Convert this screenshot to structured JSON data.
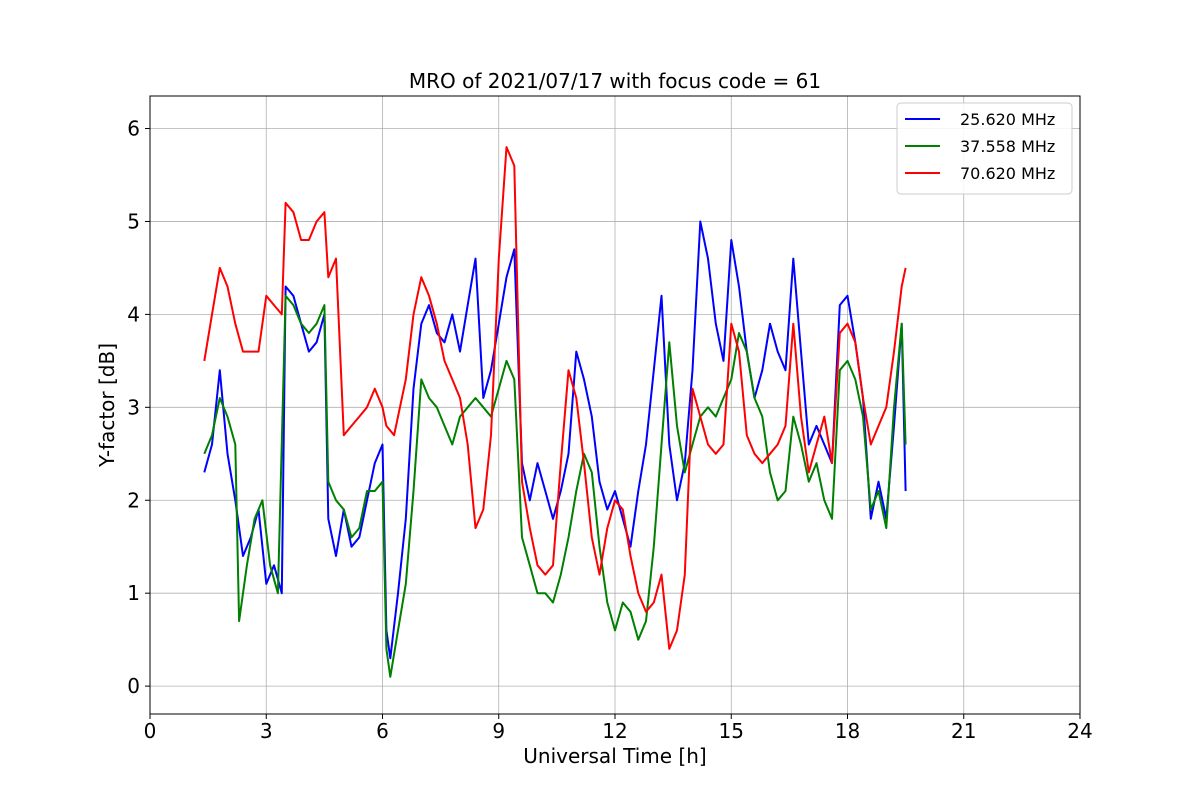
{
  "chart_data": {
    "type": "line",
    "title": "MRO of 2021/07/17 with focus code = 61",
    "xlabel": "Universal Time [h]",
    "ylabel": "Y-factor [dB]",
    "xlim": [
      0,
      24
    ],
    "ylim": [
      -0.3,
      6.35
    ],
    "xticks": [
      0,
      3,
      6,
      9,
      12,
      15,
      18,
      21,
      24
    ],
    "yticks": [
      0,
      1,
      2,
      3,
      4,
      5,
      6
    ],
    "grid": true,
    "legend_position": "top-right",
    "series": [
      {
        "name": "25.620 MHz",
        "color": "#0000ff",
        "points": [
          [
            1.4,
            2.3
          ],
          [
            1.6,
            2.6
          ],
          [
            1.8,
            3.4
          ],
          [
            2.0,
            2.5
          ],
          [
            2.2,
            2.0
          ],
          [
            2.4,
            1.4
          ],
          [
            2.6,
            1.6
          ],
          [
            2.8,
            1.9
          ],
          [
            3.0,
            1.1
          ],
          [
            3.2,
            1.3
          ],
          [
            3.4,
            1.0
          ],
          [
            3.5,
            4.3
          ],
          [
            3.7,
            4.2
          ],
          [
            3.9,
            3.9
          ],
          [
            4.1,
            3.6
          ],
          [
            4.3,
            3.7
          ],
          [
            4.5,
            4.0
          ],
          [
            4.6,
            1.8
          ],
          [
            4.8,
            1.4
          ],
          [
            5.0,
            1.9
          ],
          [
            5.2,
            1.5
          ],
          [
            5.4,
            1.6
          ],
          [
            5.6,
            2.0
          ],
          [
            5.8,
            2.4
          ],
          [
            6.0,
            2.6
          ],
          [
            6.1,
            0.6
          ],
          [
            6.2,
            0.3
          ],
          [
            6.4,
            1.0
          ],
          [
            6.6,
            1.8
          ],
          [
            6.8,
            3.2
          ],
          [
            7.0,
            3.9
          ],
          [
            7.2,
            4.1
          ],
          [
            7.4,
            3.8
          ],
          [
            7.6,
            3.7
          ],
          [
            7.8,
            4.0
          ],
          [
            8.0,
            3.6
          ],
          [
            8.2,
            4.1
          ],
          [
            8.4,
            4.6
          ],
          [
            8.6,
            3.1
          ],
          [
            8.8,
            3.4
          ],
          [
            9.0,
            3.9
          ],
          [
            9.2,
            4.4
          ],
          [
            9.4,
            4.7
          ],
          [
            9.6,
            2.4
          ],
          [
            9.8,
            2.0
          ],
          [
            10.0,
            2.4
          ],
          [
            10.2,
            2.1
          ],
          [
            10.4,
            1.8
          ],
          [
            10.6,
            2.1
          ],
          [
            10.8,
            2.5
          ],
          [
            11.0,
            3.6
          ],
          [
            11.2,
            3.3
          ],
          [
            11.4,
            2.9
          ],
          [
            11.6,
            2.2
          ],
          [
            11.8,
            1.9
          ],
          [
            12.0,
            2.1
          ],
          [
            12.2,
            1.8
          ],
          [
            12.4,
            1.5
          ],
          [
            12.6,
            2.1
          ],
          [
            12.8,
            2.6
          ],
          [
            13.0,
            3.4
          ],
          [
            13.2,
            4.2
          ],
          [
            13.4,
            2.6
          ],
          [
            13.6,
            2.0
          ],
          [
            13.8,
            2.4
          ],
          [
            14.0,
            3.4
          ],
          [
            14.2,
            5.0
          ],
          [
            14.4,
            4.6
          ],
          [
            14.6,
            3.9
          ],
          [
            14.8,
            3.5
          ],
          [
            15.0,
            4.8
          ],
          [
            15.2,
            4.3
          ],
          [
            15.4,
            3.6
          ],
          [
            15.6,
            3.1
          ],
          [
            15.8,
            3.4
          ],
          [
            16.0,
            3.9
          ],
          [
            16.2,
            3.6
          ],
          [
            16.4,
            3.4
          ],
          [
            16.6,
            4.6
          ],
          [
            16.8,
            3.6
          ],
          [
            17.0,
            2.6
          ],
          [
            17.2,
            2.8
          ],
          [
            17.4,
            2.6
          ],
          [
            17.6,
            2.4
          ],
          [
            17.8,
            4.1
          ],
          [
            18.0,
            4.2
          ],
          [
            18.2,
            3.7
          ],
          [
            18.4,
            3.1
          ],
          [
            18.6,
            1.8
          ],
          [
            18.8,
            2.2
          ],
          [
            19.0,
            1.8
          ],
          [
            19.2,
            2.8
          ],
          [
            19.4,
            3.9
          ],
          [
            19.5,
            2.1
          ]
        ]
      },
      {
        "name": "37.558 MHz",
        "color": "#008000",
        "points": [
          [
            1.4,
            2.5
          ],
          [
            1.6,
            2.7
          ],
          [
            1.8,
            3.1
          ],
          [
            2.0,
            2.9
          ],
          [
            2.2,
            2.6
          ],
          [
            2.3,
            0.7
          ],
          [
            2.5,
            1.3
          ],
          [
            2.7,
            1.8
          ],
          [
            2.9,
            2.0
          ],
          [
            3.1,
            1.3
          ],
          [
            3.3,
            1.0
          ],
          [
            3.5,
            4.2
          ],
          [
            3.7,
            4.1
          ],
          [
            3.9,
            3.9
          ],
          [
            4.1,
            3.8
          ],
          [
            4.3,
            3.9
          ],
          [
            4.5,
            4.1
          ],
          [
            4.6,
            2.2
          ],
          [
            4.8,
            2.0
          ],
          [
            5.0,
            1.9
          ],
          [
            5.2,
            1.6
          ],
          [
            5.4,
            1.7
          ],
          [
            5.6,
            2.1
          ],
          [
            5.8,
            2.1
          ],
          [
            6.0,
            2.2
          ],
          [
            6.1,
            0.4
          ],
          [
            6.2,
            0.1
          ],
          [
            6.4,
            0.6
          ],
          [
            6.6,
            1.1
          ],
          [
            6.8,
            2.1
          ],
          [
            7.0,
            3.3
          ],
          [
            7.2,
            3.1
          ],
          [
            7.4,
            3.0
          ],
          [
            7.6,
            2.8
          ],
          [
            7.8,
            2.6
          ],
          [
            8.0,
            2.9
          ],
          [
            8.2,
            3.0
          ],
          [
            8.4,
            3.1
          ],
          [
            8.6,
            3.0
          ],
          [
            8.8,
            2.9
          ],
          [
            9.0,
            3.2
          ],
          [
            9.2,
            3.5
          ],
          [
            9.4,
            3.3
          ],
          [
            9.6,
            1.6
          ],
          [
            9.8,
            1.3
          ],
          [
            10.0,
            1.0
          ],
          [
            10.2,
            1.0
          ],
          [
            10.4,
            0.9
          ],
          [
            10.6,
            1.2
          ],
          [
            10.8,
            1.6
          ],
          [
            11.0,
            2.1
          ],
          [
            11.2,
            2.5
          ],
          [
            11.4,
            2.3
          ],
          [
            11.6,
            1.5
          ],
          [
            11.8,
            0.9
          ],
          [
            12.0,
            0.6
          ],
          [
            12.2,
            0.9
          ],
          [
            12.4,
            0.8
          ],
          [
            12.6,
            0.5
          ],
          [
            12.8,
            0.7
          ],
          [
            13.0,
            1.5
          ],
          [
            13.2,
            2.6
          ],
          [
            13.4,
            3.7
          ],
          [
            13.6,
            2.8
          ],
          [
            13.8,
            2.3
          ],
          [
            14.0,
            2.6
          ],
          [
            14.2,
            2.9
          ],
          [
            14.4,
            3.0
          ],
          [
            14.6,
            2.9
          ],
          [
            14.8,
            3.1
          ],
          [
            15.0,
            3.3
          ],
          [
            15.2,
            3.8
          ],
          [
            15.4,
            3.6
          ],
          [
            15.6,
            3.1
          ],
          [
            15.8,
            2.9
          ],
          [
            16.0,
            2.3
          ],
          [
            16.2,
            2.0
          ],
          [
            16.4,
            2.1
          ],
          [
            16.6,
            2.9
          ],
          [
            16.8,
            2.6
          ],
          [
            17.0,
            2.2
          ],
          [
            17.2,
            2.4
          ],
          [
            17.4,
            2.0
          ],
          [
            17.6,
            1.8
          ],
          [
            17.8,
            3.4
          ],
          [
            18.0,
            3.5
          ],
          [
            18.2,
            3.3
          ],
          [
            18.4,
            2.9
          ],
          [
            18.6,
            1.9
          ],
          [
            18.8,
            2.1
          ],
          [
            19.0,
            1.7
          ],
          [
            19.2,
            3.0
          ],
          [
            19.4,
            3.9
          ],
          [
            19.5,
            2.6
          ]
        ]
      },
      {
        "name": "70.620 MHz",
        "color": "#ff0000",
        "points": [
          [
            1.4,
            3.5
          ],
          [
            1.6,
            4.0
          ],
          [
            1.8,
            4.5
          ],
          [
            2.0,
            4.3
          ],
          [
            2.2,
            3.9
          ],
          [
            2.4,
            3.6
          ],
          [
            2.6,
            3.6
          ],
          [
            2.8,
            3.6
          ],
          [
            3.0,
            4.2
          ],
          [
            3.2,
            4.1
          ],
          [
            3.4,
            4.0
          ],
          [
            3.5,
            5.2
          ],
          [
            3.7,
            5.1
          ],
          [
            3.9,
            4.8
          ],
          [
            4.1,
            4.8
          ],
          [
            4.3,
            5.0
          ],
          [
            4.5,
            5.1
          ],
          [
            4.6,
            4.4
          ],
          [
            4.8,
            4.6
          ],
          [
            5.0,
            2.7
          ],
          [
            5.2,
            2.8
          ],
          [
            5.4,
            2.9
          ],
          [
            5.6,
            3.0
          ],
          [
            5.8,
            3.2
          ],
          [
            6.0,
            3.0
          ],
          [
            6.1,
            2.8
          ],
          [
            6.3,
            2.7
          ],
          [
            6.6,
            3.3
          ],
          [
            6.8,
            4.0
          ],
          [
            7.0,
            4.4
          ],
          [
            7.2,
            4.2
          ],
          [
            7.4,
            3.9
          ],
          [
            7.6,
            3.5
          ],
          [
            7.8,
            3.3
          ],
          [
            8.0,
            3.1
          ],
          [
            8.2,
            2.6
          ],
          [
            8.4,
            1.7
          ],
          [
            8.6,
            1.9
          ],
          [
            8.8,
            2.7
          ],
          [
            9.0,
            4.6
          ],
          [
            9.2,
            5.8
          ],
          [
            9.4,
            5.6
          ],
          [
            9.6,
            2.2
          ],
          [
            9.8,
            1.7
          ],
          [
            10.0,
            1.3
          ],
          [
            10.2,
            1.2
          ],
          [
            10.4,
            1.3
          ],
          [
            10.6,
            2.4
          ],
          [
            10.8,
            3.4
          ],
          [
            11.0,
            3.1
          ],
          [
            11.2,
            2.4
          ],
          [
            11.4,
            1.6
          ],
          [
            11.6,
            1.2
          ],
          [
            11.8,
            1.7
          ],
          [
            12.0,
            2.0
          ],
          [
            12.2,
            1.9
          ],
          [
            12.4,
            1.4
          ],
          [
            12.6,
            1.0
          ],
          [
            12.8,
            0.8
          ],
          [
            13.0,
            0.9
          ],
          [
            13.2,
            1.2
          ],
          [
            13.4,
            0.4
          ],
          [
            13.6,
            0.6
          ],
          [
            13.8,
            1.2
          ],
          [
            14.0,
            3.2
          ],
          [
            14.2,
            2.9
          ],
          [
            14.4,
            2.6
          ],
          [
            14.6,
            2.5
          ],
          [
            14.8,
            2.6
          ],
          [
            15.0,
            3.9
          ],
          [
            15.2,
            3.6
          ],
          [
            15.4,
            2.7
          ],
          [
            15.6,
            2.5
          ],
          [
            15.8,
            2.4
          ],
          [
            16.0,
            2.5
          ],
          [
            16.2,
            2.6
          ],
          [
            16.4,
            2.8
          ],
          [
            16.6,
            3.9
          ],
          [
            16.8,
            2.9
          ],
          [
            17.0,
            2.3
          ],
          [
            17.2,
            2.6
          ],
          [
            17.4,
            2.9
          ],
          [
            17.6,
            2.4
          ],
          [
            17.8,
            3.8
          ],
          [
            18.0,
            3.9
          ],
          [
            18.2,
            3.7
          ],
          [
            18.4,
            3.1
          ],
          [
            18.6,
            2.6
          ],
          [
            18.8,
            2.8
          ],
          [
            19.0,
            3.0
          ],
          [
            19.2,
            3.6
          ],
          [
            19.4,
            4.3
          ],
          [
            19.5,
            4.5
          ]
        ]
      }
    ]
  }
}
